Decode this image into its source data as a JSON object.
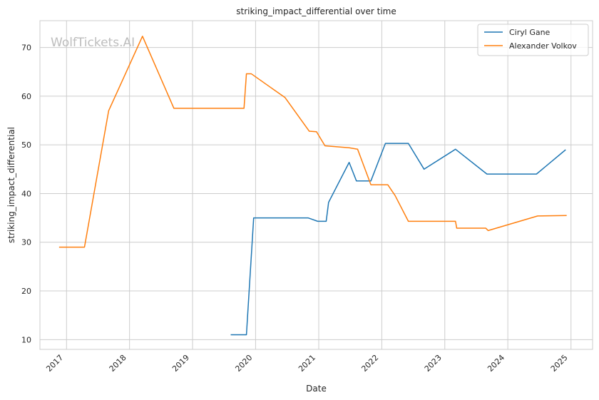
{
  "chart_data": {
    "type": "line",
    "title": "striking_impact_differential over time",
    "xlabel": "Date",
    "ylabel": "striking_impact_differential",
    "watermark": "WolfTickets.AI",
    "grid": true,
    "legend_position": "top-right",
    "xlim": [
      "2016-07-31",
      "2025-05-06"
    ],
    "ylim": [
      8,
      75.5
    ],
    "x_ticks": [
      "2017-01-01",
      "2018-01-01",
      "2019-01-01",
      "2020-01-01",
      "2021-01-01",
      "2022-01-01",
      "2023-01-01",
      "2024-01-01",
      "2025-01-01"
    ],
    "x_tick_labels": [
      "2017",
      "2018",
      "2019",
      "2020",
      "2021",
      "2022",
      "2023",
      "2024",
      "2025"
    ],
    "y_ticks": [
      10,
      20,
      30,
      40,
      50,
      60,
      70
    ],
    "series": [
      {
        "name": "Ciryl Gane",
        "color": "#1f77b4",
        "points": [
          [
            "2019-08-10",
            11.0
          ],
          [
            "2019-11-09",
            11.0
          ],
          [
            "2019-12-21",
            35.0
          ],
          [
            "2020-10-31",
            35.0
          ],
          [
            "2020-12-26",
            34.3
          ],
          [
            "2021-02-13",
            34.3
          ],
          [
            "2021-02-27",
            38.2
          ],
          [
            "2021-06-26",
            46.4
          ],
          [
            "2021-08-07",
            42.6
          ],
          [
            "2021-10-30",
            42.6
          ],
          [
            "2022-01-22",
            50.3
          ],
          [
            "2022-06-04",
            50.3
          ],
          [
            "2022-09-03",
            45.0
          ],
          [
            "2023-03-04",
            49.1
          ],
          [
            "2023-09-02",
            44.0
          ],
          [
            "2024-06-15",
            44.0
          ],
          [
            "2024-12-01",
            49.0
          ]
        ]
      },
      {
        "name": "Alexander Volkov",
        "color": "#ff7f0e",
        "points": [
          [
            "2016-11-19",
            29.0
          ],
          [
            "2017-04-15",
            29.0
          ],
          [
            "2017-09-02",
            57.0
          ],
          [
            "2018-03-17",
            72.3
          ],
          [
            "2018-09-15",
            57.5
          ],
          [
            "2019-10-26",
            57.5
          ],
          [
            "2019-11-09",
            64.6
          ],
          [
            "2019-12-07",
            64.6
          ],
          [
            "2020-06-20",
            59.7
          ],
          [
            "2020-11-07",
            52.8
          ],
          [
            "2020-12-19",
            52.7
          ],
          [
            "2021-02-06",
            49.8
          ],
          [
            "2021-06-26",
            49.4
          ],
          [
            "2021-08-14",
            49.1
          ],
          [
            "2021-10-30",
            41.8
          ],
          [
            "2022-02-05",
            41.8
          ],
          [
            "2022-03-19",
            39.6
          ],
          [
            "2022-06-04",
            34.3
          ],
          [
            "2023-03-04",
            34.3
          ],
          [
            "2023-03-11",
            32.9
          ],
          [
            "2023-08-26",
            32.9
          ],
          [
            "2023-09-09",
            32.4
          ],
          [
            "2024-06-22",
            35.4
          ],
          [
            "2024-12-07",
            35.5
          ]
        ]
      }
    ]
  }
}
